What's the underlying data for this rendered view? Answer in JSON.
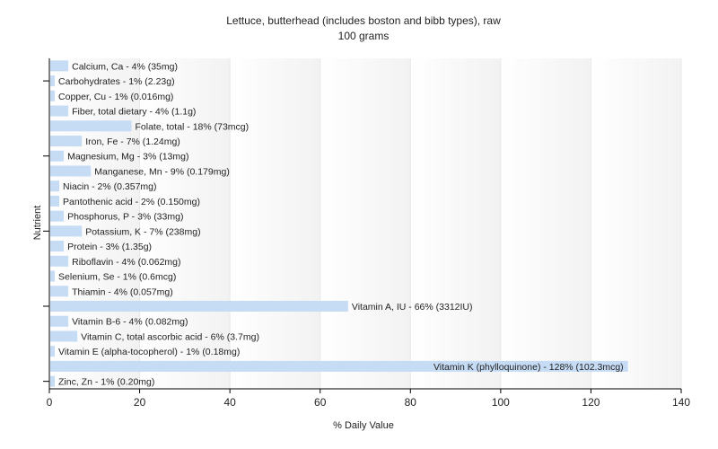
{
  "chart_data": {
    "type": "bar",
    "orientation": "horizontal",
    "title": "Lettuce, butterhead (includes boston and bibb types), raw",
    "subtitle": "100 grams",
    "xlabel": "% Daily Value",
    "ylabel": "Nutrient",
    "xlim": [
      0,
      140
    ],
    "x_ticks": [
      0,
      20,
      40,
      60,
      80,
      100,
      120,
      140
    ],
    "grid": true,
    "colors": {
      "bar": "#c6dcf5",
      "axis": "#000000",
      "grid": "#e8e8e8",
      "background_band": "#f4f4f4"
    },
    "bars": [
      {
        "label": "Calcium, Ca - 4% (35mg)",
        "value": 4
      },
      {
        "label": "Carbohydrates - 1% (2.23g)",
        "value": 1
      },
      {
        "label": "Copper, Cu - 1% (0.016mg)",
        "value": 1
      },
      {
        "label": "Fiber, total dietary - 4% (1.1g)",
        "value": 4
      },
      {
        "label": "Folate, total - 18% (73mcg)",
        "value": 18
      },
      {
        "label": "Iron, Fe - 7% (1.24mg)",
        "value": 7
      },
      {
        "label": "Magnesium, Mg - 3% (13mg)",
        "value": 3
      },
      {
        "label": "Manganese, Mn - 9% (0.179mg)",
        "value": 9
      },
      {
        "label": "Niacin - 2% (0.357mg)",
        "value": 2
      },
      {
        "label": "Pantothenic acid - 2% (0.150mg)",
        "value": 2
      },
      {
        "label": "Phosphorus, P - 3% (33mg)",
        "value": 3
      },
      {
        "label": "Potassium, K - 7% (238mg)",
        "value": 7
      },
      {
        "label": "Protein - 3% (1.35g)",
        "value": 3
      },
      {
        "label": "Riboflavin - 4% (0.062mg)",
        "value": 4
      },
      {
        "label": "Selenium, Se - 1% (0.6mcg)",
        "value": 1
      },
      {
        "label": "Thiamin - 4% (0.057mg)",
        "value": 4
      },
      {
        "label": "Vitamin A, IU - 66% (3312IU)",
        "value": 66
      },
      {
        "label": "Vitamin B-6 - 4% (0.082mg)",
        "value": 4
      },
      {
        "label": "Vitamin C, total ascorbic acid - 6% (3.7mg)",
        "value": 6
      },
      {
        "label": "Vitamin E (alpha-tocopherol) - 1% (0.18mg)",
        "value": 1
      },
      {
        "label": "Vitamin K (phylloquinone) - 128% (102.3mcg)",
        "value": 128
      },
      {
        "label": "Zinc, Zn - 1% (0.20mg)",
        "value": 1
      }
    ]
  }
}
